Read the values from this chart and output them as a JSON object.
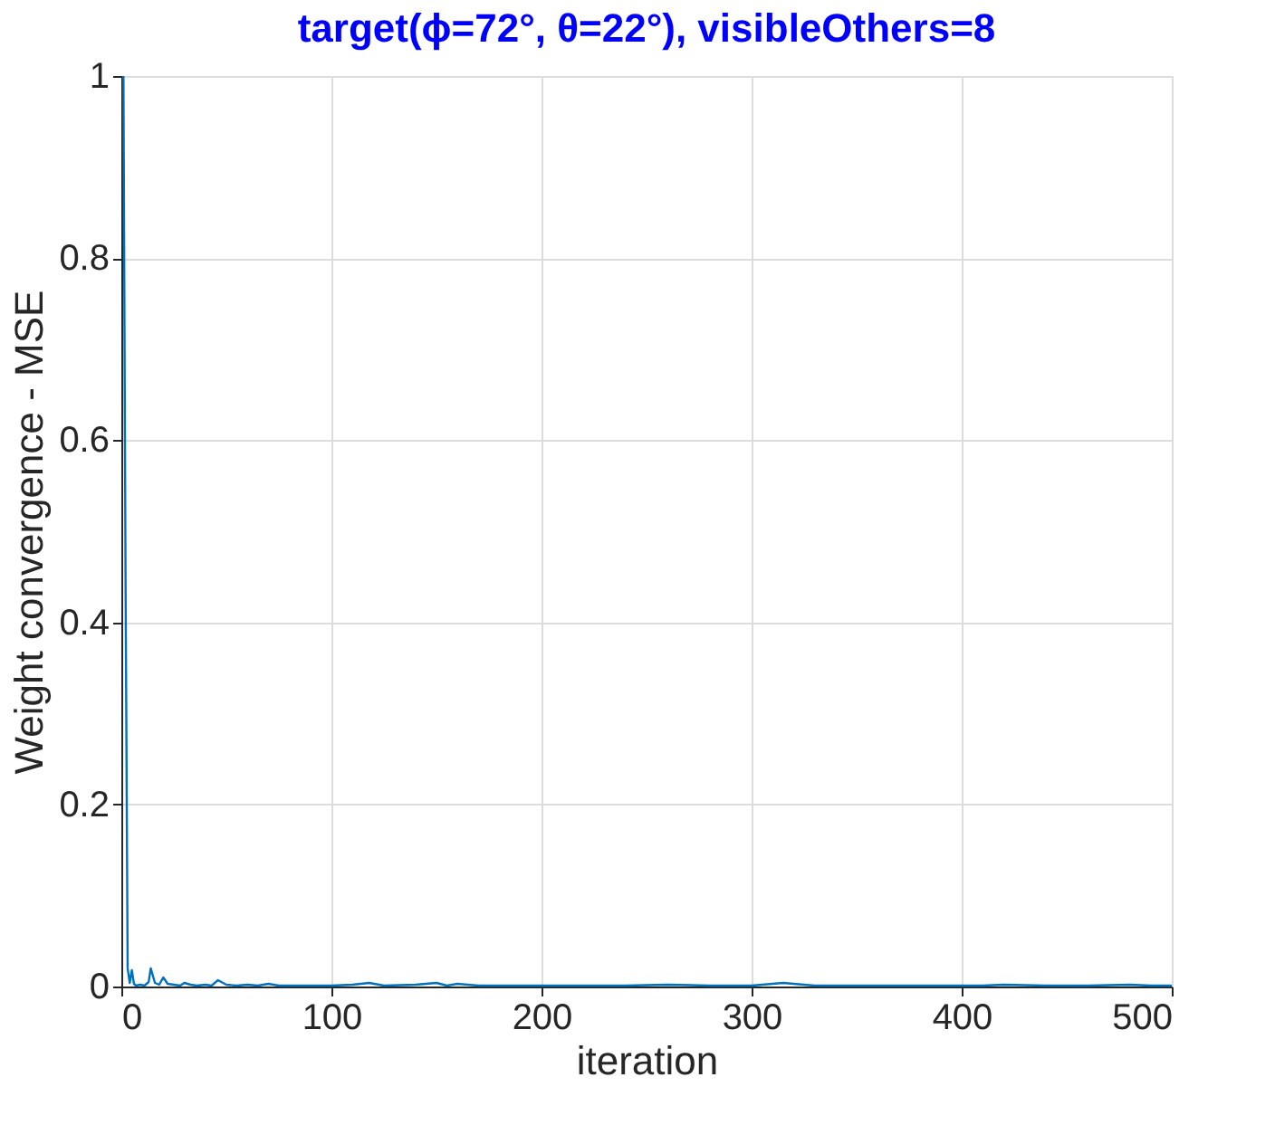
{
  "chart_data": {
    "type": "line",
    "title": "target(ϕ=72°, θ=22°), visibleOthers=8",
    "xlabel": "iteration",
    "ylabel": "Weight convergence - MSE",
    "series": [
      {
        "color": "#0072bd",
        "x": [
          1,
          2,
          3,
          4,
          5,
          6,
          7,
          9,
          11,
          13,
          14,
          16,
          18,
          20,
          22,
          25,
          28,
          30,
          33,
          36,
          40,
          43,
          46,
          50,
          55,
          60,
          65,
          70,
          75,
          80,
          90,
          100,
          110,
          118,
          125,
          140,
          150,
          155,
          160,
          170,
          180,
          200,
          220,
          240,
          260,
          280,
          300,
          315,
          330,
          350,
          370,
          390,
          410,
          420,
          440,
          460,
          480,
          490,
          500
        ],
        "values": [
          1,
          0.45,
          0.02,
          0.004,
          0.018,
          0.003,
          0.001,
          0.002,
          0.001,
          0.005,
          0.02,
          0.004,
          0.002,
          0.01,
          0.003,
          0.002,
          0.001,
          0.004,
          0.002,
          0.001,
          0.002,
          0.001,
          0.007,
          0.002,
          0.001,
          0.002,
          0.001,
          0.003,
          0.001,
          0.001,
          0.001,
          0.001,
          0.002,
          0.004,
          0.001,
          0.002,
          0.004,
          0.001,
          0.003,
          0.001,
          0.001,
          0.001,
          0.001,
          0.001,
          0.002,
          0.001,
          0.001,
          0.004,
          0.001,
          0.001,
          0.001,
          0.001,
          0.001,
          0.002,
          0.001,
          0.001,
          0.002,
          0.001,
          0.001
        ]
      }
    ],
    "xlim": [
      0,
      500
    ],
    "xticks": [
      0,
      100,
      200,
      300,
      400,
      500
    ],
    "ylim": [
      0,
      1
    ],
    "yticks": [
      0,
      0.2,
      0.4,
      0.6,
      0.8,
      1
    ],
    "grid": true,
    "marker": "none",
    "line_style": "solid"
  }
}
